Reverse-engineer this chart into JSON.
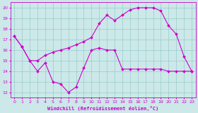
{
  "title": "",
  "xlabel": "Windchill (Refroidissement éolien,°C)",
  "ylabel": "",
  "bg_color": "#cce8e8",
  "line_color": "#cc00cc",
  "grid_color": "#99cccc",
  "xlim": [
    -0.5,
    23.5
  ],
  "ylim": [
    11.5,
    20.5
  ],
  "xticks": [
    0,
    1,
    2,
    3,
    4,
    5,
    6,
    7,
    8,
    9,
    10,
    11,
    12,
    13,
    14,
    15,
    16,
    17,
    18,
    19,
    20,
    21,
    22,
    23
  ],
  "yticks": [
    12,
    13,
    14,
    15,
    16,
    17,
    18,
    19,
    20
  ],
  "line1_x": [
    0,
    1,
    2,
    3,
    4,
    5,
    6,
    7,
    8,
    9,
    10,
    11,
    12,
    13,
    14,
    15,
    16,
    17,
    18,
    19,
    20,
    21,
    22,
    23
  ],
  "line1_y": [
    17.3,
    16.3,
    15.0,
    14.0,
    14.8,
    13.0,
    12.8,
    12.0,
    12.5,
    14.3,
    16.0,
    16.2,
    16.0,
    16.0,
    14.2,
    14.2,
    14.2,
    14.2,
    14.2,
    14.2,
    14.0,
    14.0,
    14.0,
    14.0
  ],
  "line2_x": [
    0,
    1,
    2,
    3,
    4,
    5,
    6,
    7,
    8,
    9,
    10,
    11,
    12,
    13,
    14,
    15,
    16,
    17,
    18,
    19,
    20,
    21,
    22,
    23
  ],
  "line2_y": [
    17.3,
    16.3,
    15.0,
    15.0,
    15.5,
    15.8,
    16.0,
    16.2,
    16.5,
    16.8,
    17.2,
    18.5,
    19.3,
    18.8,
    19.3,
    19.8,
    20.0,
    20.0,
    20.0,
    19.7,
    18.3,
    17.5,
    15.4,
    14.0
  ],
  "marker_size": 2.0,
  "linewidth": 0.8,
  "tick_labelsize": 4.5,
  "xlabel_fontsize": 5.0
}
